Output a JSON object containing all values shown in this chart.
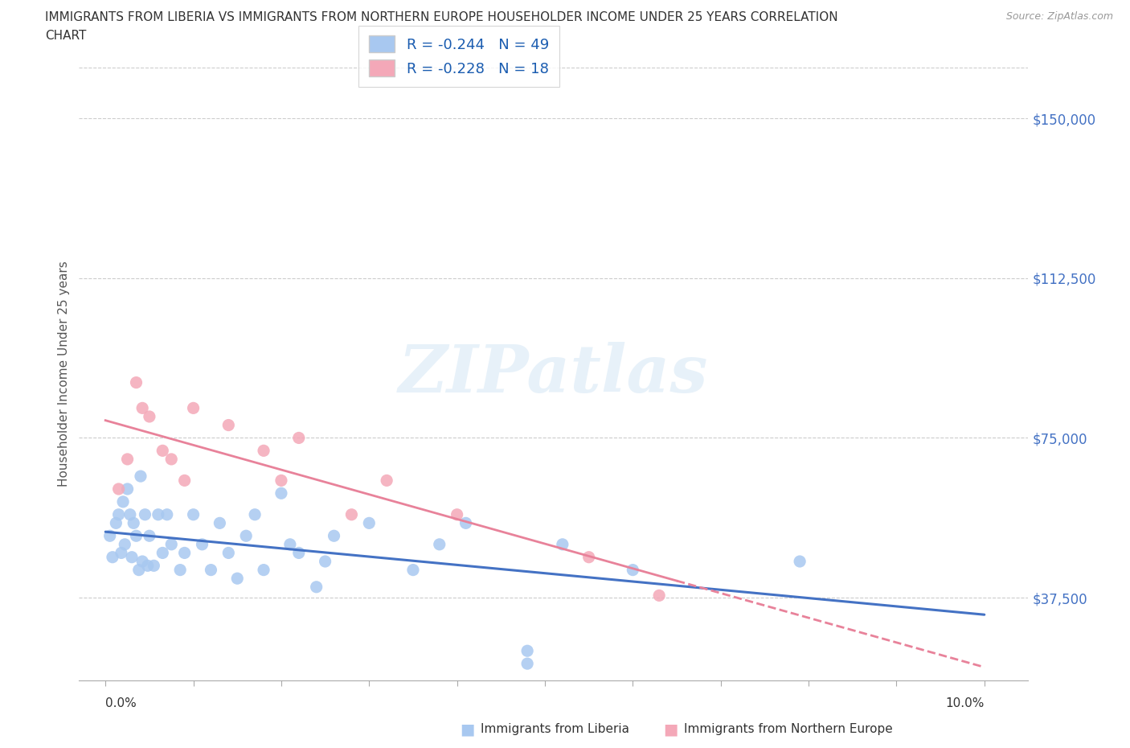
{
  "title_line1": "IMMIGRANTS FROM LIBERIA VS IMMIGRANTS FROM NORTHERN EUROPE HOUSEHOLDER INCOME UNDER 25 YEARS CORRELATION",
  "title_line2": "CHART",
  "source": "Source: ZipAtlas.com",
  "ylabel": "Householder Income Under 25 years",
  "yticks": [
    37500,
    75000,
    112500,
    150000
  ],
  "ytick_labels": [
    "$37,500",
    "$75,000",
    "$112,500",
    "$150,000"
  ],
  "xlim": [
    0.0,
    10.0
  ],
  "ylim": [
    18000,
    162000
  ],
  "liberia_R": -0.244,
  "liberia_N": 49,
  "northern_europe_R": -0.228,
  "northern_europe_N": 18,
  "liberia_color": "#a8c8f0",
  "northern_europe_color": "#f4a8b8",
  "liberia_line_color": "#4472c4",
  "northern_europe_line_color": "#e8829a",
  "watermark": "ZIPatlas",
  "liberia_x": [
    0.05,
    0.08,
    0.12,
    0.15,
    0.18,
    0.2,
    0.22,
    0.25,
    0.28,
    0.3,
    0.32,
    0.35,
    0.38,
    0.4,
    0.42,
    0.45,
    0.48,
    0.5,
    0.55,
    0.6,
    0.65,
    0.7,
    0.75,
    0.85,
    0.9,
    1.0,
    1.1,
    1.2,
    1.3,
    1.4,
    1.5,
    1.6,
    1.7,
    1.8,
    2.0,
    2.1,
    2.2,
    2.4,
    2.5,
    2.6,
    3.0,
    3.5,
    3.8,
    4.1,
    4.8,
    5.2,
    6.0,
    4.8,
    7.9
  ],
  "liberia_y": [
    52000,
    47000,
    55000,
    57000,
    48000,
    60000,
    50000,
    63000,
    57000,
    47000,
    55000,
    52000,
    44000,
    66000,
    46000,
    57000,
    45000,
    52000,
    45000,
    57000,
    48000,
    57000,
    50000,
    44000,
    48000,
    57000,
    50000,
    44000,
    55000,
    48000,
    42000,
    52000,
    57000,
    44000,
    62000,
    50000,
    48000,
    40000,
    46000,
    52000,
    55000,
    44000,
    50000,
    55000,
    25000,
    50000,
    44000,
    22000,
    46000
  ],
  "northern_europe_x": [
    0.15,
    0.25,
    0.35,
    0.42,
    0.5,
    0.65,
    0.75,
    0.9,
    1.0,
    1.4,
    1.8,
    2.0,
    2.2,
    2.8,
    3.2,
    4.0,
    5.5,
    6.3
  ],
  "northern_europe_y": [
    63000,
    70000,
    88000,
    82000,
    80000,
    72000,
    70000,
    65000,
    82000,
    78000,
    72000,
    65000,
    75000,
    57000,
    65000,
    57000,
    47000,
    38000
  ],
  "background_color": "#ffffff",
  "grid_color": "#cccccc",
  "legend_color": "#1a5cb0"
}
